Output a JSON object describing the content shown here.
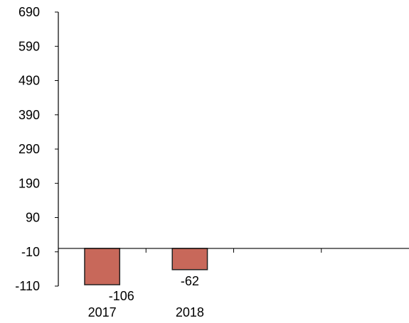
{
  "chart_data": {
    "type": "bar",
    "title": "",
    "xlabel": "",
    "ylabel": "",
    "categories": [
      "2017",
      "2018"
    ],
    "values": [
      -106,
      -62
    ],
    "data_labels": [
      "-106",
      "-62"
    ],
    "y_ticks": [
      690,
      590,
      490,
      390,
      290,
      190,
      90,
      -10,
      -110
    ],
    "ylim": [
      -110,
      690
    ],
    "category_slots": 4,
    "grid": false,
    "legend": "none",
    "colors": {
      "bar_fill": "#c8685a",
      "bar_stroke": "#222222",
      "axis": "#000000"
    }
  }
}
